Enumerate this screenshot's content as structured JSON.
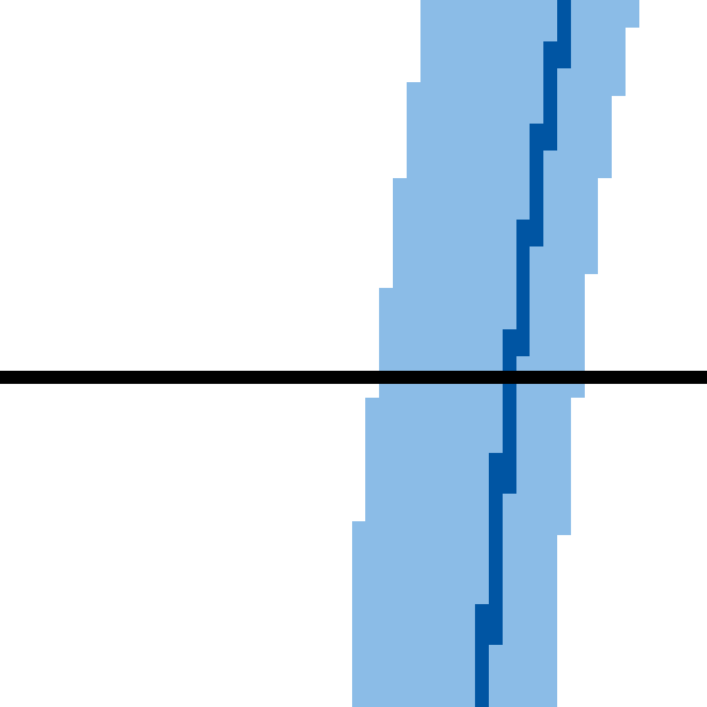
{
  "colors": {
    "background": "#ffffff",
    "band_fill": "#8bbce7",
    "center_line": "#0055a3",
    "horizontal_line": "#000000"
  }
}
